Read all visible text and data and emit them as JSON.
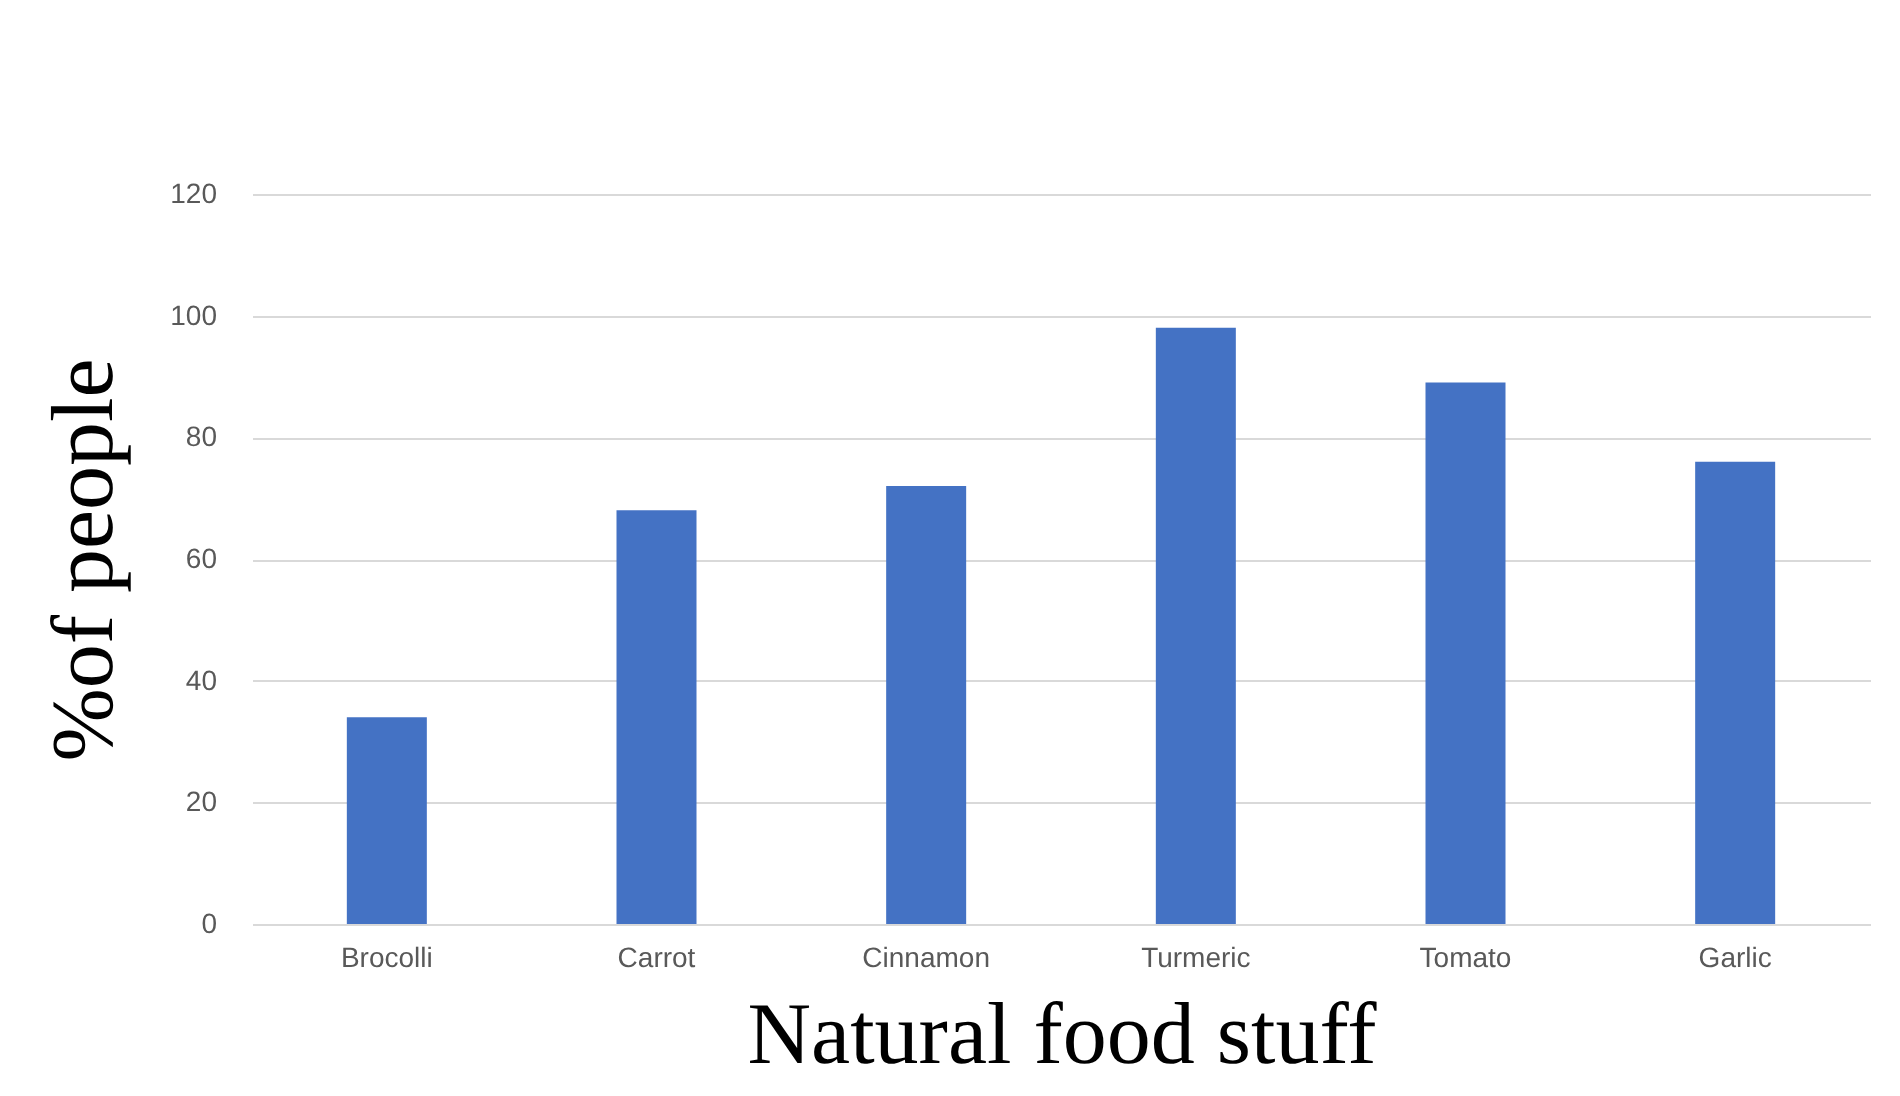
{
  "chart_data": {
    "type": "bar",
    "xlabel": "Natural food stuff",
    "ylabel": "%of people",
    "categories": [
      "Brocolli",
      "Carrot",
      "Cinnamon",
      "Turmeric",
      "Tomato",
      "Garlic"
    ],
    "values": [
      34,
      68,
      72,
      98,
      89,
      76
    ],
    "color": "#4472c4",
    "ylim": [
      0,
      120
    ],
    "yticks": [
      0,
      20,
      40,
      60,
      80,
      100,
      120
    ],
    "grid": "y"
  }
}
